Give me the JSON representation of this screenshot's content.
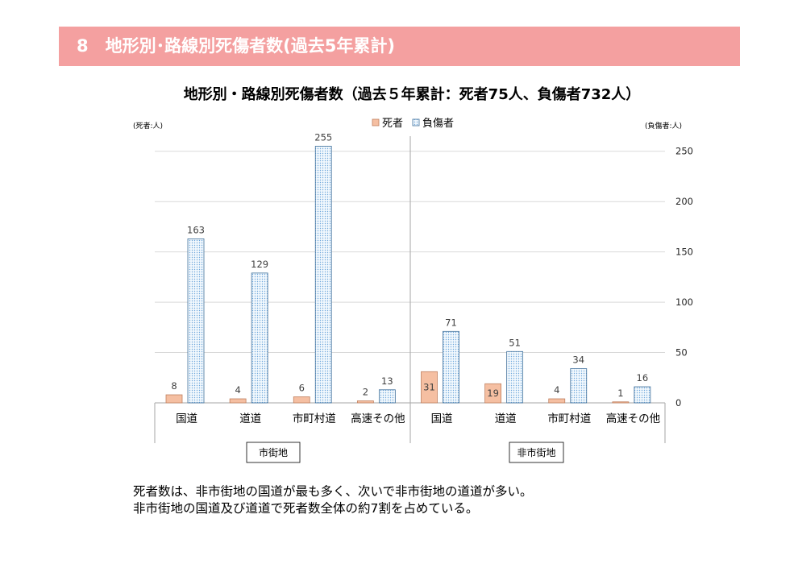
{
  "header": {
    "title": "8　地形別･路線別死傷者数(過去5年累計)",
    "background": "#F4A0A0"
  },
  "chart_data": {
    "type": "bar",
    "title": "地形別・路線別死傷者数（過去５年累計：死者75人、負傷者732人）",
    "ylabel_left": "(死者:人)",
    "ylabel_right": "(負傷者:人)",
    "groups": [
      {
        "label": "市街地",
        "categories": [
          "国道",
          "道道",
          "市町村道",
          "高速その他"
        ]
      },
      {
        "label": "非市街地",
        "categories": [
          "国道",
          "道道",
          "市町村道",
          "高速その他"
        ]
      }
    ],
    "series": [
      {
        "name": "死者",
        "color": "#F5BFA2",
        "values": [
          8,
          4,
          6,
          2,
          31,
          19,
          4,
          1
        ]
      },
      {
        "name": "負傷者",
        "color": "#6FA8DC",
        "values": [
          163,
          129,
          255,
          13,
          71,
          51,
          34,
          16
        ]
      }
    ],
    "ylim": [
      0,
      265
    ],
    "yticks": [
      0,
      50,
      100,
      150,
      200,
      250
    ],
    "grid": true,
    "legend": "top-center"
  },
  "notes": [
    "死者数は、非市街地の国道が最も多く、次いで非市街地の道道が多い。",
    "非市街地の国道及び道道で死者数全体の約7割を占めている。"
  ]
}
